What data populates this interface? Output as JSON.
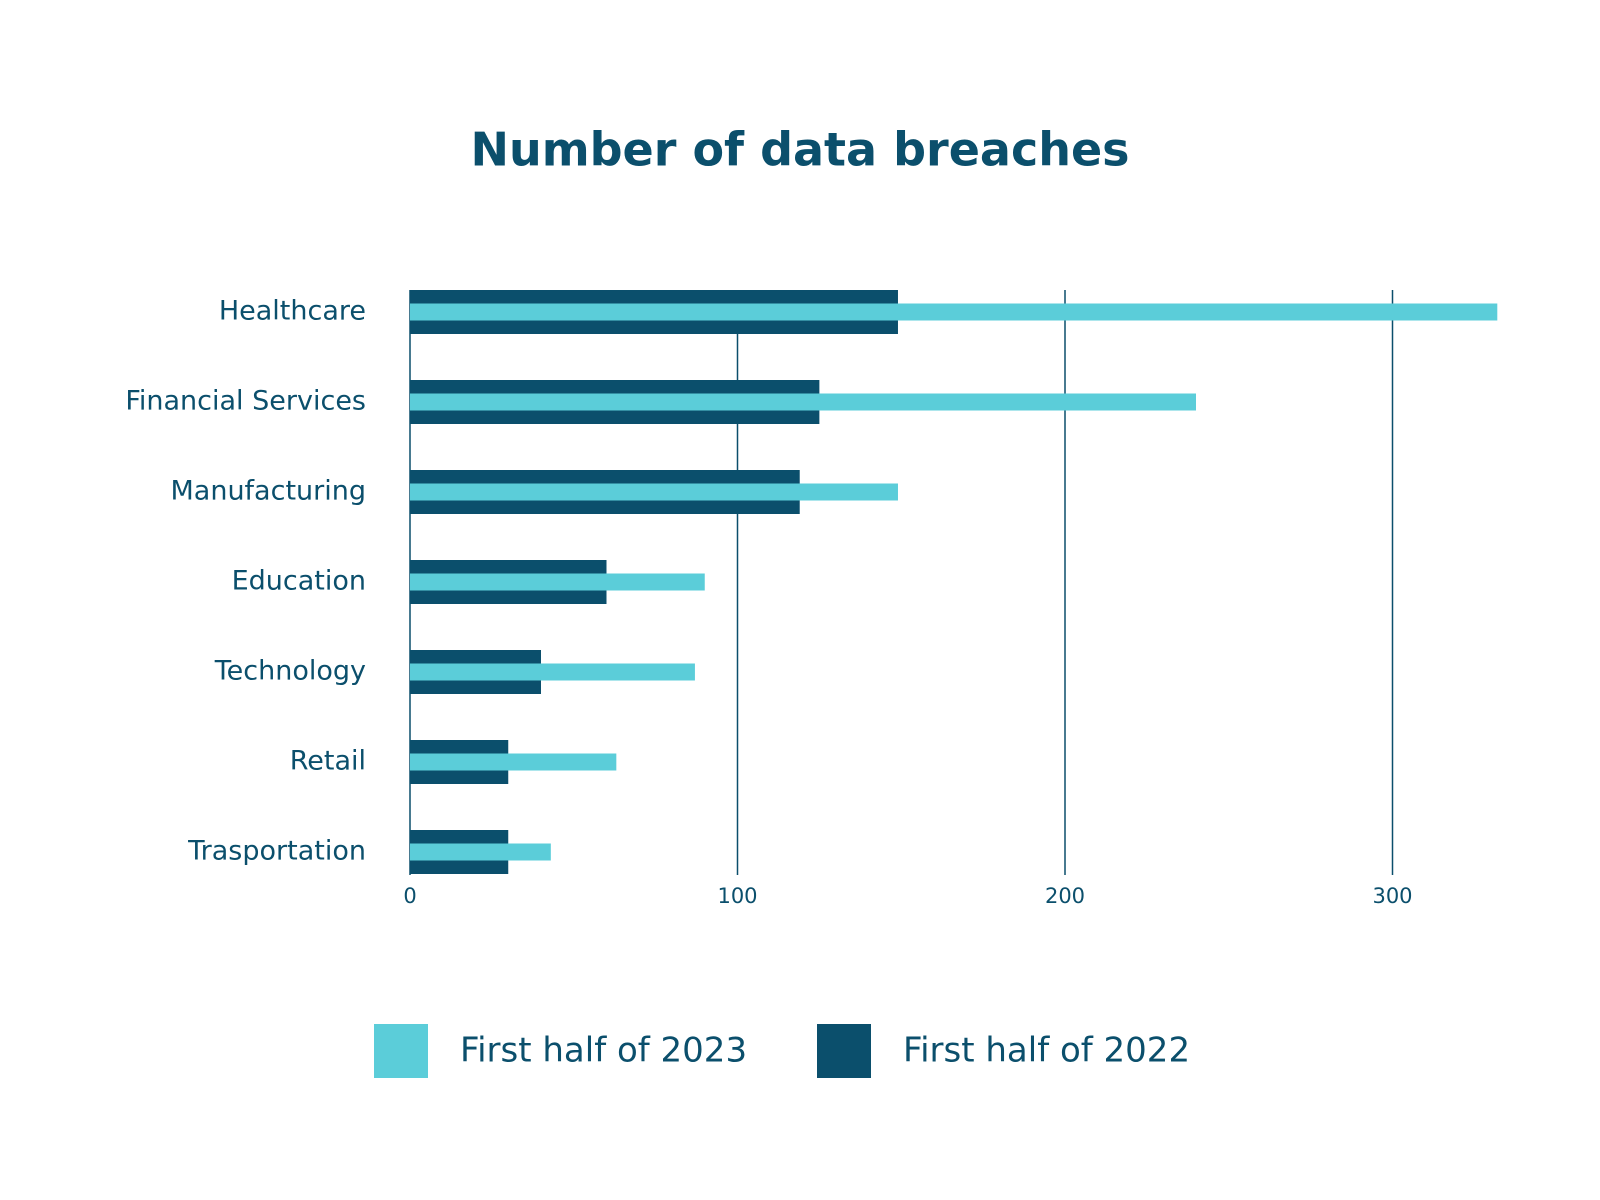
{
  "chart_data": {
    "type": "bar",
    "orientation": "horizontal",
    "title": "Number of data breaches",
    "categories": [
      "Healthcare",
      "Financial Services",
      "Manufacturing",
      "Education",
      "Technology",
      "Retail",
      "Trasportation"
    ],
    "series": [
      {
        "name": "First half of 2023",
        "color": "#5bcdd9",
        "values": [
          332,
          240,
          149,
          90,
          87,
          63,
          43
        ]
      },
      {
        "name": "First half of 2022",
        "color": "#0b4f6c",
        "values": [
          149,
          125,
          119,
          60,
          40,
          30,
          30
        ]
      }
    ],
    "xlim": [
      0,
      340
    ],
    "xticks": [
      0,
      100,
      200,
      300
    ],
    "grid": true
  }
}
